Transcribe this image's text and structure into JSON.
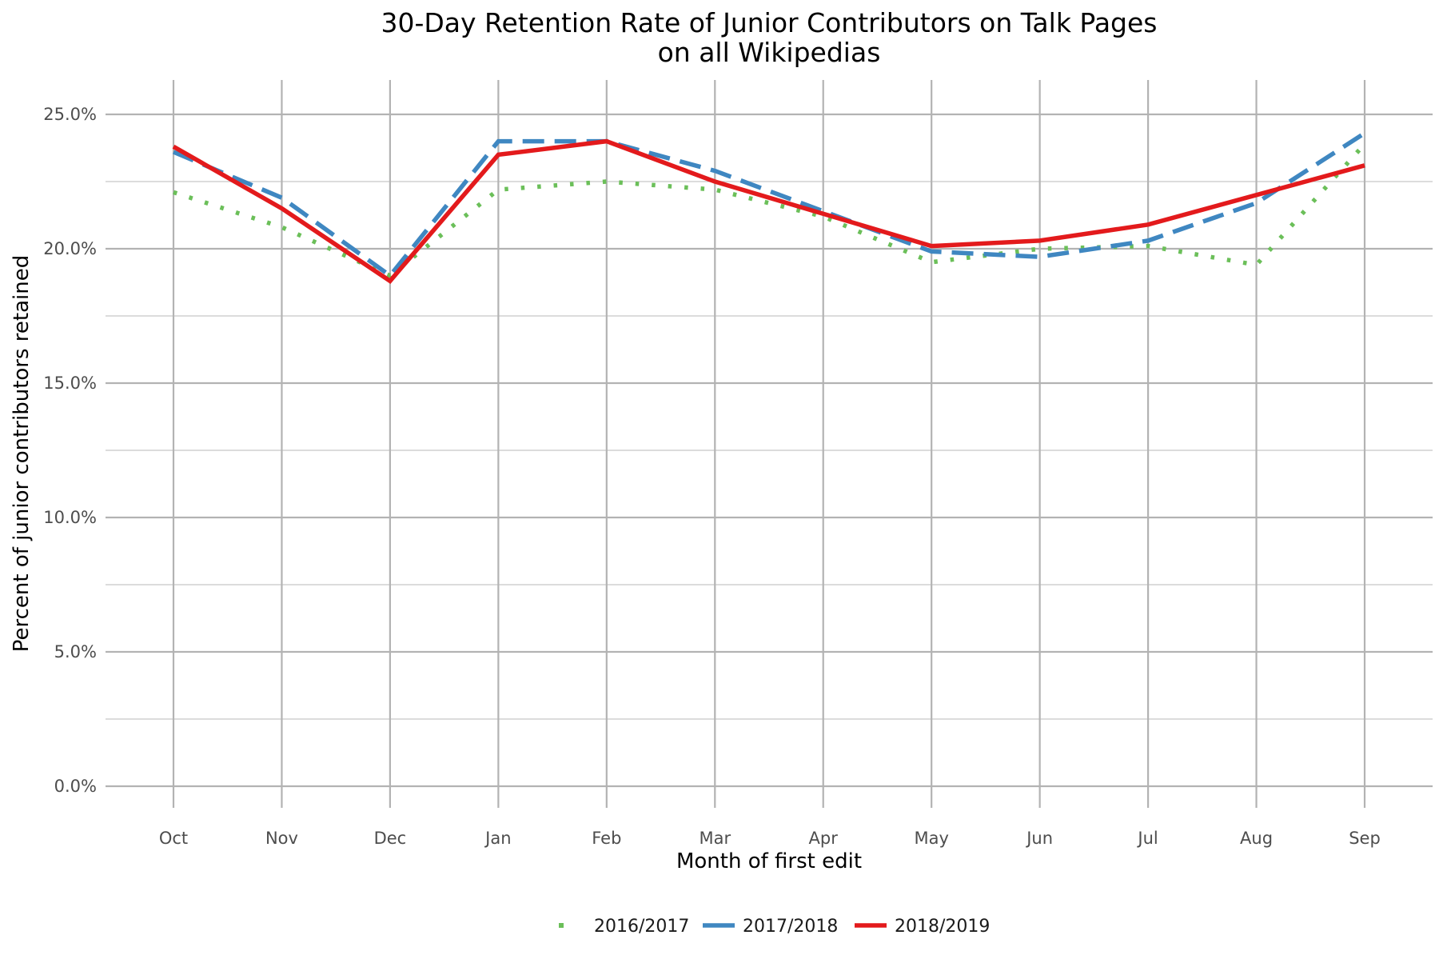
{
  "chart_data": {
    "type": "line",
    "title_line1": "30-Day Retention Rate of Junior Contributors on Talk Pages",
    "title_line2": "on all Wikipedias",
    "xlabel": "Month of first edit",
    "ylabel": "Percent of junior contributors retained",
    "categories": [
      "Oct",
      "Nov",
      "Dec",
      "Jan",
      "Feb",
      "Mar",
      "Apr",
      "May",
      "Jun",
      "Jul",
      "Aug",
      "Sep"
    ],
    "ylim": [
      -0.005,
      0.26
    ],
    "y_ticks": [
      0.0,
      0.05,
      0.1,
      0.15,
      0.2,
      0.25
    ],
    "y_tick_labels": [
      "0.0%",
      "5.0%",
      "10.0%",
      "15.0%",
      "20.0%",
      "25.0%"
    ],
    "y_minor_ticks": [
      0.025,
      0.075,
      0.125,
      0.175,
      0.225
    ],
    "grid": true,
    "legend_position": "bottom",
    "series": [
      {
        "name": "2016/2017",
        "color": "#6bbf59",
        "dash": "dotted",
        "values": [
          0.221,
          0.208,
          0.19,
          0.222,
          0.225,
          0.222,
          0.212,
          0.195,
          0.2,
          0.201,
          0.194,
          0.239
        ]
      },
      {
        "name": "2017/2018",
        "color": "#3f87c1",
        "dash": "dashed",
        "values": [
          0.236,
          0.219,
          0.19,
          0.24,
          0.24,
          0.229,
          0.214,
          0.199,
          0.197,
          0.203,
          0.217,
          0.243
        ]
      },
      {
        "name": "2018/2019",
        "color": "#e31a1c",
        "dash": "solid",
        "values": [
          0.238,
          0.215,
          0.188,
          0.235,
          0.24,
          0.225,
          0.213,
          0.201,
          0.203,
          0.209,
          0.22,
          0.231
        ]
      }
    ]
  }
}
